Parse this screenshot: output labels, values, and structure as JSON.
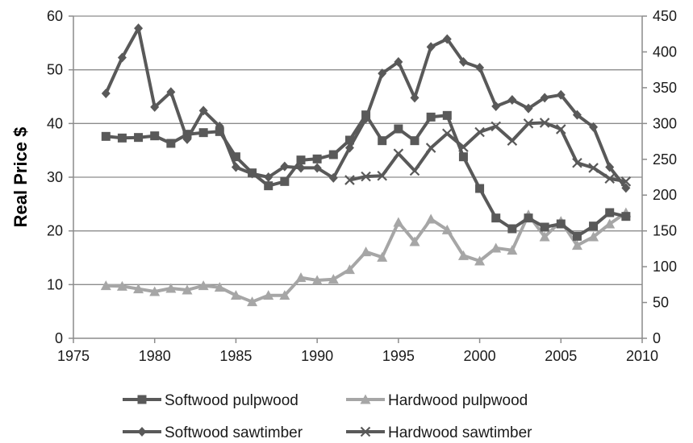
{
  "chart_data": {
    "type": "line",
    "title": "",
    "xlabel": "",
    "ylabel": "Real Price $",
    "y2label": "",
    "xlim": [
      1975,
      2010
    ],
    "ylim": [
      0,
      60
    ],
    "y2lim": [
      0,
      450
    ],
    "x_ticks": [
      1975,
      1980,
      1985,
      1990,
      1995,
      2000,
      2005,
      2010
    ],
    "y_ticks": [
      0,
      10,
      20,
      30,
      40,
      50,
      60
    ],
    "y2_ticks": [
      0,
      50,
      100,
      150,
      200,
      250,
      300,
      350,
      400,
      450
    ],
    "grid": "horizontal",
    "legend_position": "bottom",
    "series": [
      {
        "name": "Softwood pulpwood",
        "axis": "left",
        "color": "#595959",
        "marker": "square",
        "x": [
          1977,
          1978,
          1979,
          1980,
          1981,
          1982,
          1983,
          1984,
          1985,
          1986,
          1987,
          1988,
          1989,
          1990,
          1991,
          1992,
          1993,
          1994,
          1995,
          1996,
          1997,
          1998,
          1999,
          2000,
          2001,
          2002,
          2003,
          2004,
          2005,
          2006,
          2007,
          2008,
          2009
        ],
        "y": [
          37.6,
          37.3,
          37.4,
          37.7,
          36.3,
          38.0,
          38.3,
          38.5,
          33.8,
          30.8,
          28.4,
          29.2,
          33.2,
          33.4,
          34.2,
          36.9,
          41.6,
          36.8,
          39.0,
          36.8,
          41.2,
          41.5,
          33.8,
          27.9,
          22.4,
          20.4,
          22.4,
          20.7,
          21.3,
          19.0,
          20.9,
          23.4,
          22.7
        ]
      },
      {
        "name": "Hardwood pulpwood",
        "axis": "left",
        "color": "#a6a6a6",
        "marker": "triangle",
        "x": [
          1977,
          1978,
          1979,
          1980,
          1981,
          1982,
          1983,
          1984,
          1985,
          1986,
          1987,
          1988,
          1989,
          1990,
          1991,
          1992,
          1993,
          1994,
          1995,
          1996,
          1997,
          1998,
          1999,
          2000,
          2001,
          2002,
          2003,
          2004,
          2005,
          2006,
          2007,
          2008,
          2009
        ],
        "y": [
          9.8,
          9.7,
          9.2,
          8.7,
          9.3,
          9.0,
          9.8,
          9.5,
          8.0,
          6.8,
          8.0,
          8.0,
          11.3,
          10.8,
          11.0,
          12.8,
          16.1,
          15.1,
          21.6,
          18.0,
          22.2,
          20.2,
          15.4,
          14.4,
          16.8,
          16.4,
          23.0,
          18.9,
          21.8,
          17.3,
          18.9,
          21.3,
          23.4
        ]
      },
      {
        "name": "Softwood sawtimber",
        "axis": "right",
        "color": "#595959",
        "marker": "diamond",
        "x": [
          1977,
          1978,
          1979,
          1980,
          1981,
          1982,
          1983,
          1984,
          1985,
          1986,
          1987,
          1988,
          1989,
          1990,
          1991,
          1992,
          1993,
          1994,
          1995,
          1996,
          1997,
          1998,
          1999,
          2000,
          2001,
          2002,
          2003,
          2004,
          2005,
          2006,
          2007,
          2008,
          2009
        ],
        "y": [
          342,
          392,
          433,
          323,
          344,
          278,
          318,
          296,
          239,
          230,
          225,
          240,
          238,
          238,
          224,
          266,
          307,
          370,
          386,
          336,
          407,
          418,
          386,
          378,
          324,
          333,
          321,
          336,
          340,
          312,
          295,
          239,
          210
        ]
      },
      {
        "name": "Hardwood sawtimber",
        "axis": "right",
        "color": "#595959",
        "marker": "x",
        "x": [
          1992,
          1993,
          1994,
          1995,
          1996,
          1997,
          1998,
          1999,
          2000,
          2001,
          2002,
          2003,
          2004,
          2005,
          2006,
          2007,
          2008,
          2009
        ],
        "y": [
          221,
          226,
          227,
          258,
          234,
          266,
          286,
          267,
          288,
          296,
          276,
          300,
          301,
          292,
          245,
          238,
          223,
          219
        ]
      }
    ]
  }
}
